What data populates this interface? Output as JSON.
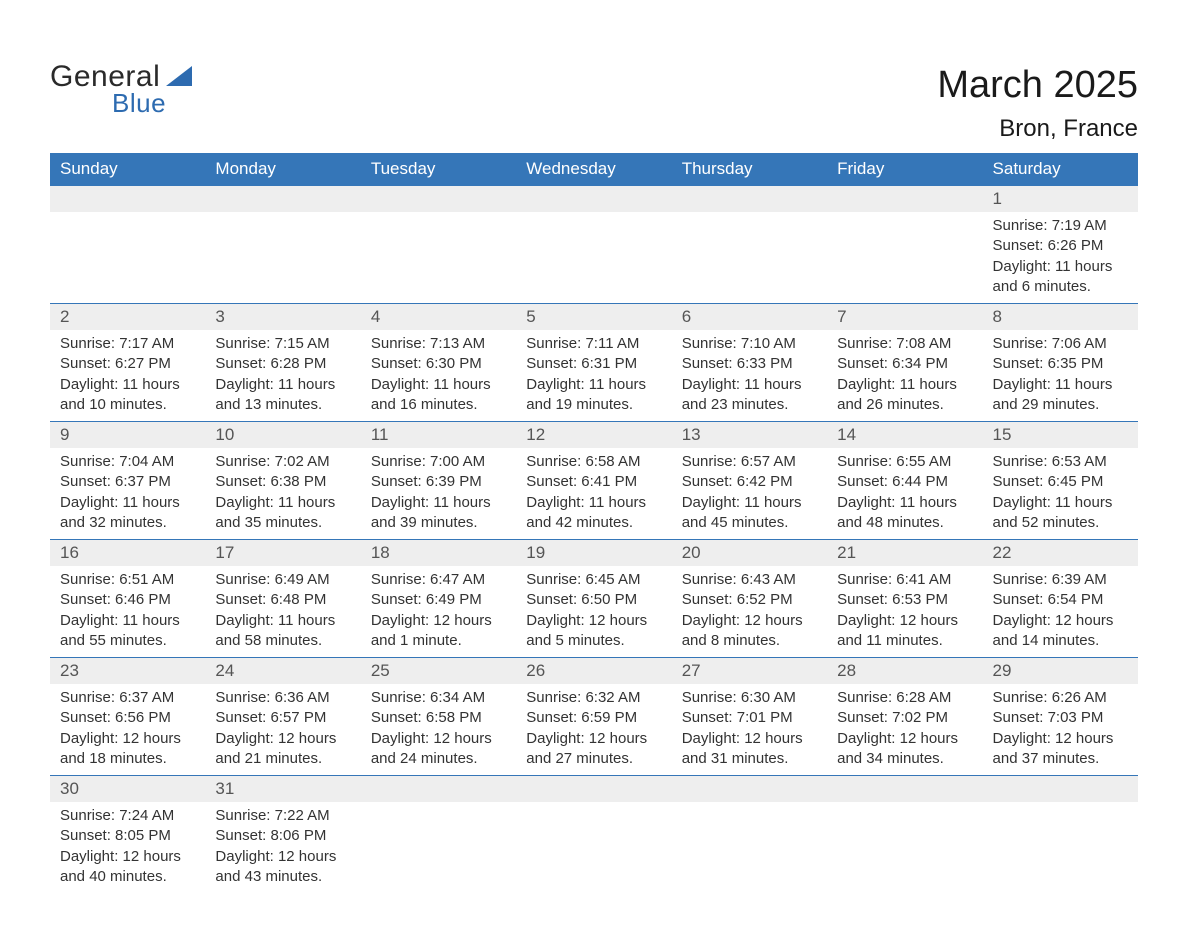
{
  "logo": {
    "word1": "General",
    "word2": "Blue"
  },
  "title": "March 2025",
  "location": "Bron, France",
  "colors": {
    "header_bg": "#3576b8",
    "header_text": "#ffffff",
    "daynum_bg": "#eeeeee",
    "body_bg": "#ffffff",
    "text": "#333333",
    "accent": "#2d6bb0"
  },
  "day_names": [
    "Sunday",
    "Monday",
    "Tuesday",
    "Wednesday",
    "Thursday",
    "Friday",
    "Saturday"
  ],
  "weeks": [
    [
      {
        "empty": true
      },
      {
        "empty": true
      },
      {
        "empty": true
      },
      {
        "empty": true
      },
      {
        "empty": true
      },
      {
        "empty": true
      },
      {
        "num": "1",
        "sunrise": "Sunrise: 7:19 AM",
        "sunset": "Sunset: 6:26 PM",
        "d1": "Daylight: 11 hours",
        "d2": "and 6 minutes."
      }
    ],
    [
      {
        "num": "2",
        "sunrise": "Sunrise: 7:17 AM",
        "sunset": "Sunset: 6:27 PM",
        "d1": "Daylight: 11 hours",
        "d2": "and 10 minutes."
      },
      {
        "num": "3",
        "sunrise": "Sunrise: 7:15 AM",
        "sunset": "Sunset: 6:28 PM",
        "d1": "Daylight: 11 hours",
        "d2": "and 13 minutes."
      },
      {
        "num": "4",
        "sunrise": "Sunrise: 7:13 AM",
        "sunset": "Sunset: 6:30 PM",
        "d1": "Daylight: 11 hours",
        "d2": "and 16 minutes."
      },
      {
        "num": "5",
        "sunrise": "Sunrise: 7:11 AM",
        "sunset": "Sunset: 6:31 PM",
        "d1": "Daylight: 11 hours",
        "d2": "and 19 minutes."
      },
      {
        "num": "6",
        "sunrise": "Sunrise: 7:10 AM",
        "sunset": "Sunset: 6:33 PM",
        "d1": "Daylight: 11 hours",
        "d2": "and 23 minutes."
      },
      {
        "num": "7",
        "sunrise": "Sunrise: 7:08 AM",
        "sunset": "Sunset: 6:34 PM",
        "d1": "Daylight: 11 hours",
        "d2": "and 26 minutes."
      },
      {
        "num": "8",
        "sunrise": "Sunrise: 7:06 AM",
        "sunset": "Sunset: 6:35 PM",
        "d1": "Daylight: 11 hours",
        "d2": "and 29 minutes."
      }
    ],
    [
      {
        "num": "9",
        "sunrise": "Sunrise: 7:04 AM",
        "sunset": "Sunset: 6:37 PM",
        "d1": "Daylight: 11 hours",
        "d2": "and 32 minutes."
      },
      {
        "num": "10",
        "sunrise": "Sunrise: 7:02 AM",
        "sunset": "Sunset: 6:38 PM",
        "d1": "Daylight: 11 hours",
        "d2": "and 35 minutes."
      },
      {
        "num": "11",
        "sunrise": "Sunrise: 7:00 AM",
        "sunset": "Sunset: 6:39 PM",
        "d1": "Daylight: 11 hours",
        "d2": "and 39 minutes."
      },
      {
        "num": "12",
        "sunrise": "Sunrise: 6:58 AM",
        "sunset": "Sunset: 6:41 PM",
        "d1": "Daylight: 11 hours",
        "d2": "and 42 minutes."
      },
      {
        "num": "13",
        "sunrise": "Sunrise: 6:57 AM",
        "sunset": "Sunset: 6:42 PM",
        "d1": "Daylight: 11 hours",
        "d2": "and 45 minutes."
      },
      {
        "num": "14",
        "sunrise": "Sunrise: 6:55 AM",
        "sunset": "Sunset: 6:44 PM",
        "d1": "Daylight: 11 hours",
        "d2": "and 48 minutes."
      },
      {
        "num": "15",
        "sunrise": "Sunrise: 6:53 AM",
        "sunset": "Sunset: 6:45 PM",
        "d1": "Daylight: 11 hours",
        "d2": "and 52 minutes."
      }
    ],
    [
      {
        "num": "16",
        "sunrise": "Sunrise: 6:51 AM",
        "sunset": "Sunset: 6:46 PM",
        "d1": "Daylight: 11 hours",
        "d2": "and 55 minutes."
      },
      {
        "num": "17",
        "sunrise": "Sunrise: 6:49 AM",
        "sunset": "Sunset: 6:48 PM",
        "d1": "Daylight: 11 hours",
        "d2": "and 58 minutes."
      },
      {
        "num": "18",
        "sunrise": "Sunrise: 6:47 AM",
        "sunset": "Sunset: 6:49 PM",
        "d1": "Daylight: 12 hours",
        "d2": "and 1 minute."
      },
      {
        "num": "19",
        "sunrise": "Sunrise: 6:45 AM",
        "sunset": "Sunset: 6:50 PM",
        "d1": "Daylight: 12 hours",
        "d2": "and 5 minutes."
      },
      {
        "num": "20",
        "sunrise": "Sunrise: 6:43 AM",
        "sunset": "Sunset: 6:52 PM",
        "d1": "Daylight: 12 hours",
        "d2": "and 8 minutes."
      },
      {
        "num": "21",
        "sunrise": "Sunrise: 6:41 AM",
        "sunset": "Sunset: 6:53 PM",
        "d1": "Daylight: 12 hours",
        "d2": "and 11 minutes."
      },
      {
        "num": "22",
        "sunrise": "Sunrise: 6:39 AM",
        "sunset": "Sunset: 6:54 PM",
        "d1": "Daylight: 12 hours",
        "d2": "and 14 minutes."
      }
    ],
    [
      {
        "num": "23",
        "sunrise": "Sunrise: 6:37 AM",
        "sunset": "Sunset: 6:56 PM",
        "d1": "Daylight: 12 hours",
        "d2": "and 18 minutes."
      },
      {
        "num": "24",
        "sunrise": "Sunrise: 6:36 AM",
        "sunset": "Sunset: 6:57 PM",
        "d1": "Daylight: 12 hours",
        "d2": "and 21 minutes."
      },
      {
        "num": "25",
        "sunrise": "Sunrise: 6:34 AM",
        "sunset": "Sunset: 6:58 PM",
        "d1": "Daylight: 12 hours",
        "d2": "and 24 minutes."
      },
      {
        "num": "26",
        "sunrise": "Sunrise: 6:32 AM",
        "sunset": "Sunset: 6:59 PM",
        "d1": "Daylight: 12 hours",
        "d2": "and 27 minutes."
      },
      {
        "num": "27",
        "sunrise": "Sunrise: 6:30 AM",
        "sunset": "Sunset: 7:01 PM",
        "d1": "Daylight: 12 hours",
        "d2": "and 31 minutes."
      },
      {
        "num": "28",
        "sunrise": "Sunrise: 6:28 AM",
        "sunset": "Sunset: 7:02 PM",
        "d1": "Daylight: 12 hours",
        "d2": "and 34 minutes."
      },
      {
        "num": "29",
        "sunrise": "Sunrise: 6:26 AM",
        "sunset": "Sunset: 7:03 PM",
        "d1": "Daylight: 12 hours",
        "d2": "and 37 minutes."
      }
    ],
    [
      {
        "num": "30",
        "sunrise": "Sunrise: 7:24 AM",
        "sunset": "Sunset: 8:05 PM",
        "d1": "Daylight: 12 hours",
        "d2": "and 40 minutes."
      },
      {
        "num": "31",
        "sunrise": "Sunrise: 7:22 AM",
        "sunset": "Sunset: 8:06 PM",
        "d1": "Daylight: 12 hours",
        "d2": "and 43 minutes."
      },
      {
        "empty": true
      },
      {
        "empty": true
      },
      {
        "empty": true
      },
      {
        "empty": true
      },
      {
        "empty": true
      }
    ]
  ]
}
